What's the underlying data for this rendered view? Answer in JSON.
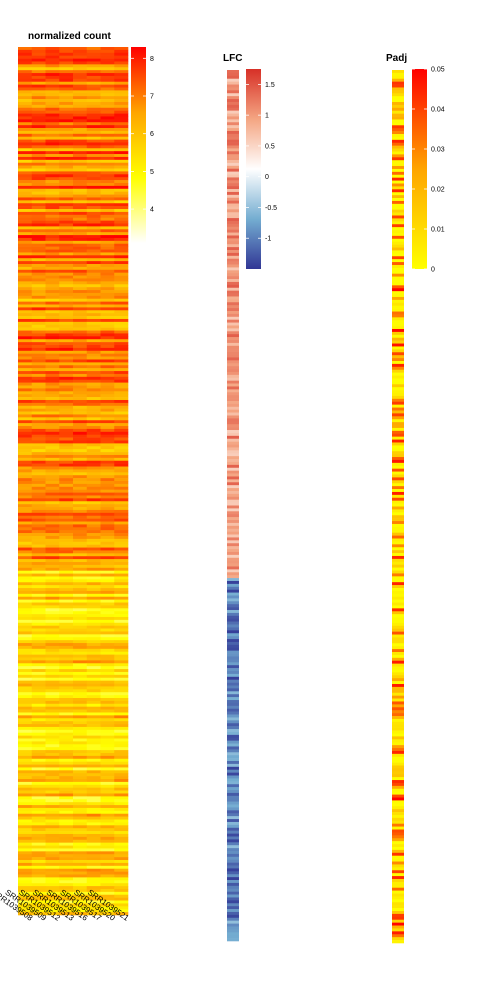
{
  "chart_data": [
    {
      "type": "heatmap",
      "title": "normalized count",
      "columns": [
        "SRR1039508",
        "SRR1039509",
        "SRR1039512",
        "SRR1039513",
        "SRR1039516",
        "SRR1039517",
        "SRR1039520",
        "SRR1039521"
      ],
      "n_rows": 300,
      "legend": {
        "title": "normalized count",
        "ticks": [
          4,
          5,
          6,
          7,
          8
        ],
        "range": [
          3.1,
          8.3
        ],
        "colors": [
          "#ffffff",
          "#ffff00",
          "#ffa500",
          "#ff0000"
        ]
      },
      "row_profile": [
        {
          "rows": [
            0,
            180
          ],
          "mean": 6.9
        },
        {
          "rows": [
            180,
            300
          ],
          "mean": 5.6
        }
      ]
    },
    {
      "type": "heatmap",
      "title": "LFC",
      "n_rows": 300,
      "legend": {
        "title": "LFC",
        "ticks": [
          1.5,
          1,
          0.5,
          0,
          -0.5,
          -1
        ],
        "range": [
          -1.5,
          1.75
        ],
        "colors": [
          "#313695",
          "#74add1",
          "#ffffff",
          "#f4a582",
          "#d73027"
        ]
      },
      "row_profile": [
        {
          "rows": [
            0,
            175
          ],
          "sign": "positive",
          "typical": 1.0
        },
        {
          "rows": [
            175,
            300
          ],
          "sign": "negative",
          "typical": -0.9
        }
      ]
    },
    {
      "type": "heatmap",
      "title": "Padj",
      "n_rows": 300,
      "legend": {
        "title": "Padj",
        "ticks": [
          0.05,
          0.04,
          0.03,
          0.02,
          0.01,
          0
        ],
        "range": [
          0,
          0.05
        ],
        "colors": [
          "#ffff00",
          "#ffa500",
          "#ff0000"
        ]
      },
      "row_profile": [
        {
          "rows": [
            0,
            300
          ],
          "typical": 0.015
        }
      ]
    }
  ]
}
